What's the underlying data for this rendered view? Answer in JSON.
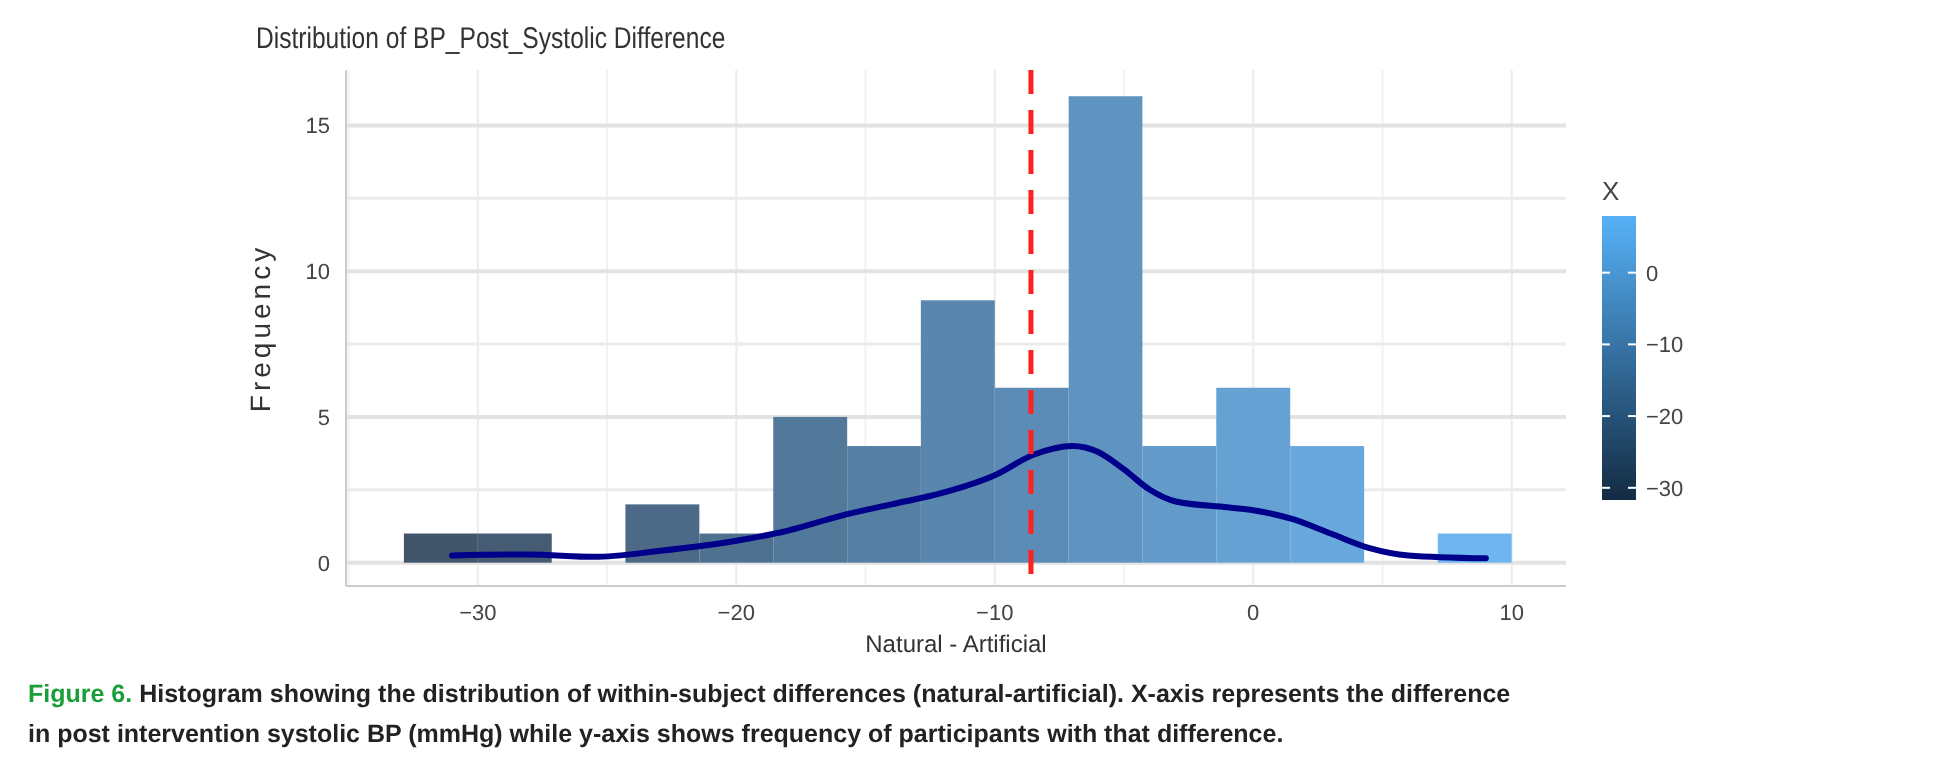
{
  "chart_data": {
    "type": "histogram",
    "title": "Distribution of BP_Post_Systolic Difference",
    "xlabel": "Natural - Artificial",
    "ylabel": "Frequency",
    "clabel": "X",
    "bins": [
      -32.86,
      -30,
      -27.14,
      -24.29,
      -21.43,
      -18.57,
      -15.71,
      -12.86,
      -10,
      -7.14,
      -4.29,
      -1.43,
      1.43,
      4.29,
      7.14,
      10
    ],
    "values": [
      1,
      1,
      0,
      2,
      1,
      5,
      4,
      9,
      6,
      16,
      4,
      6,
      4,
      0,
      1
    ],
    "colors": [
      "#42556a",
      "#455c74",
      "#48637d",
      "#4c6a87",
      "#4f7190",
      "#52789a",
      "#557fa3",
      "#5886ad",
      "#5c8cb6",
      "#5f93c0",
      "#629aca",
      "#65a1d3",
      "#68a8dd",
      "#6cafe6",
      "#6fb6f0"
    ],
    "series": [
      {
        "type": "line",
        "color": "#00008b",
        "x": [
          -31,
          -28,
          -25.5,
          -23,
          -20,
          -18,
          -16,
          -14,
          -12,
          -10,
          -8.5,
          -7,
          -6,
          -5,
          -4,
          -3,
          -1,
          0,
          1.5,
          3,
          4.5,
          6,
          9
        ],
        "values": [
          0.25,
          0.28,
          0.2,
          0.4,
          0.75,
          1.1,
          1.6,
          2.0,
          2.4,
          3.0,
          3.7,
          4.0,
          3.8,
          3.2,
          2.5,
          2.1,
          1.9,
          1.8,
          1.5,
          1.0,
          0.5,
          0.25,
          0.15
        ]
      }
    ],
    "ref_lines": [
      {
        "axis": "x",
        "value": -8.6,
        "color": "#ff2020",
        "line_style": "dashed"
      }
    ],
    "xlim": [
      -35.1,
      12.1
    ],
    "ylim": [
      -0.8,
      16.9
    ],
    "xticks": [
      -30,
      -20,
      -10,
      0,
      10
    ],
    "yticks": [
      0,
      5,
      10,
      15
    ],
    "clim": [
      -31.7,
      7.9
    ],
    "cticks": [
      0,
      -10,
      -20,
      -30
    ],
    "grid": true,
    "annotations": [
      "Figure 6.",
      "Histogram showing the distribution of within-subject differences (natural-artificial). X-axis represents the difference in post intervention systolic BP (mmHg) while y-axis shows frequency of participants with that difference."
    ]
  }
}
